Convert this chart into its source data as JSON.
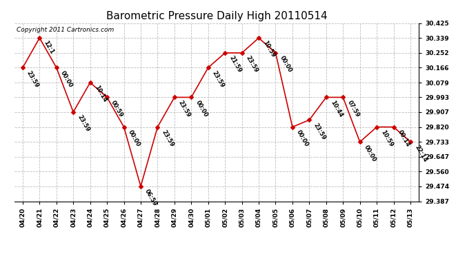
{
  "title": "Barometric Pressure Daily High 20110514",
  "copyright": "Copyright 2011 Cartronics.com",
  "x_labels": [
    "04/20",
    "04/21",
    "04/22",
    "04/23",
    "04/24",
    "04/25",
    "04/26",
    "04/27",
    "04/28",
    "04/29",
    "04/30",
    "05/01",
    "05/02",
    "05/03",
    "05/04",
    "05/05",
    "05/06",
    "05/07",
    "05/08",
    "05/09",
    "05/10",
    "05/11",
    "05/12",
    "05/13"
  ],
  "point_labels": [
    "23:59",
    "12:1",
    "00:00",
    "23:59",
    "10:14",
    "00:59",
    "00:00",
    "06:59",
    "23:59",
    "23:59",
    "00:00",
    "23:59",
    "21:59",
    "23:59",
    "10:59",
    "00:00",
    "00:00",
    "23:59",
    "10:44",
    "07:59",
    "00:00",
    "10:59",
    "00:14",
    "22:14"
  ],
  "y_values": [
    30.166,
    30.339,
    30.166,
    29.907,
    30.079,
    29.993,
    29.82,
    29.474,
    29.82,
    29.993,
    29.993,
    30.166,
    30.252,
    30.252,
    30.339,
    30.252,
    29.82,
    29.861,
    29.993,
    29.993,
    29.733,
    29.82,
    29.82,
    29.733
  ],
  "ylim_min": 29.387,
  "ylim_max": 30.425,
  "yticks": [
    29.387,
    29.474,
    29.56,
    29.647,
    29.733,
    29.82,
    29.907,
    29.993,
    30.079,
    30.166,
    30.252,
    30.339,
    30.425
  ],
  "line_color": "#cc0000",
  "marker_color": "#cc0000",
  "bg_color": "#ffffff",
  "grid_color": "#bbbbbb",
  "title_fontsize": 11,
  "label_fontsize": 6,
  "tick_fontsize": 6.5,
  "copyright_fontsize": 6.5
}
